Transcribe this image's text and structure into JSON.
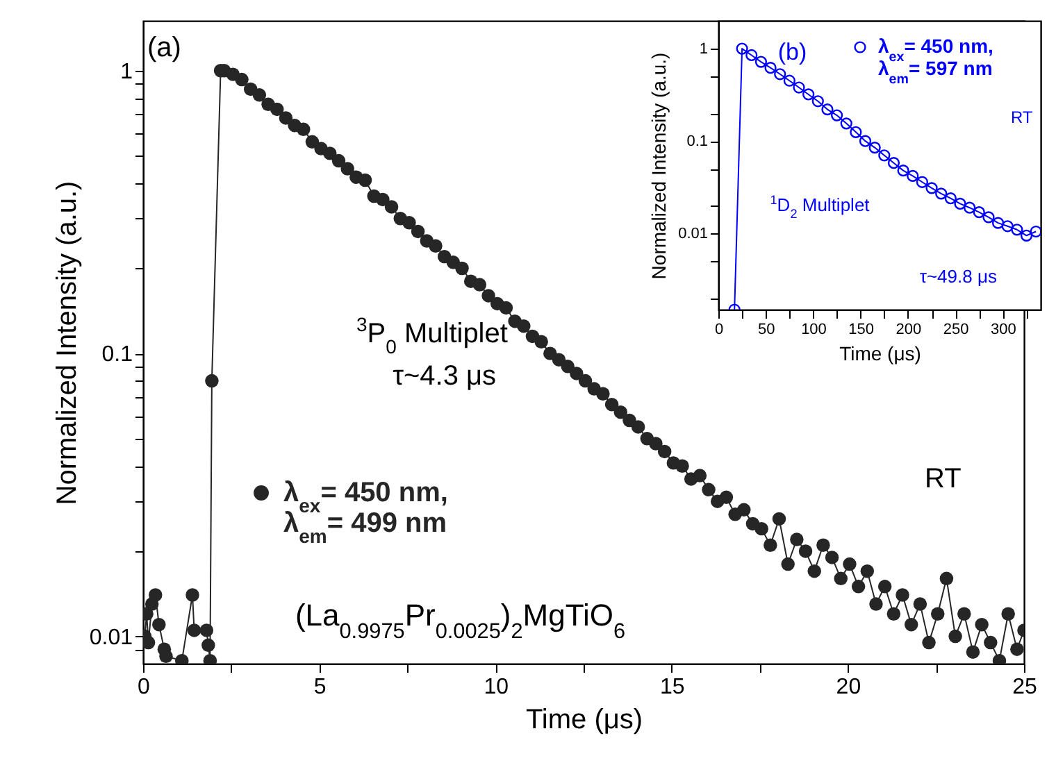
{
  "chart_data": [
    {
      "type": "line",
      "xlabel": "Time (μs)",
      "ylabel": "Normalized Intensity (a.u.)",
      "log": "y",
      "marker": "circle",
      "legend": "bottom left",
      "grid": false,
      "xlim": [
        0,
        25
      ],
      "xticks": [
        0,
        {
          "value": 2.5,
          "label": null
        },
        5,
        {
          "value": 7.5,
          "label": null
        },
        10,
        {
          "value": 12.5,
          "label": null
        },
        15,
        {
          "value": 17.5,
          "label": null
        },
        20,
        {
          "value": 22.5,
          "label": null
        },
        25
      ],
      "ylim": [
        0.008,
        1.5
      ],
      "yticks": [
        {
          "value": 0.009,
          "label": null
        },
        0.01,
        {
          "value": 0.02,
          "label": null
        },
        {
          "value": 0.03,
          "label": null
        },
        {
          "value": 0.04,
          "label": null
        },
        {
          "value": 0.05,
          "label": null
        },
        {
          "value": 0.06,
          "label": null
        },
        {
          "value": 0.07,
          "label": null
        },
        {
          "value": 0.08,
          "label": null
        },
        {
          "value": 0.09,
          "label": null
        },
        0.1,
        {
          "value": 0.2,
          "label": null
        },
        {
          "value": 0.3,
          "label": null
        },
        {
          "value": 0.4,
          "label": null
        },
        {
          "value": 0.5,
          "label": null
        },
        {
          "value": 0.6,
          "label": null
        },
        {
          "value": 0.7,
          "label": null
        },
        {
          "value": 0.8,
          "label": null
        },
        {
          "value": 0.9,
          "label": null
        },
        1
      ],
      "annotations": [
        "(a)",
        "$^{3}$P$_{0}$ Multiplet",
        "τ~4.3 μs",
        "RT",
        "(La$_{0.9975}$Pr$_{0.0025}$)$_{2}$MgTiO$_{6}$"
      ],
      "x": [
        0.05,
        0.1,
        0.15,
        0.25,
        0.35,
        0.45,
        0.6,
        0.65,
        1.1,
        1.4,
        1.45,
        1.8,
        1.85,
        1.9,
        1.95,
        2.2,
        2.3,
        2.55,
        2.8,
        3.05,
        3.3,
        3.55,
        3.8,
        4.05,
        4.3,
        4.55,
        4.8,
        5.05,
        5.3,
        5.55,
        5.8,
        6.05,
        6.3,
        6.55,
        6.8,
        7.05,
        7.3,
        7.55,
        7.8,
        8.05,
        8.3,
        8.55,
        8.8,
        9.05,
        9.3,
        9.55,
        9.8,
        10.05,
        10.3,
        10.55,
        10.8,
        11.05,
        11.3,
        11.55,
        11.8,
        12.05,
        12.3,
        12.55,
        12.8,
        13.05,
        13.3,
        13.55,
        13.8,
        14.05,
        14.3,
        14.55,
        14.8,
        15.05,
        15.3,
        15.55,
        15.8,
        16.05,
        16.3,
        16.55,
        16.8,
        17.05,
        17.3,
        17.55,
        17.8,
        18.05,
        18.3,
        18.55,
        18.8,
        19.05,
        19.3,
        19.55,
        19.8,
        20.05,
        20.3,
        20.55,
        20.8,
        21.05,
        21.3,
        21.55,
        21.8,
        22.05,
        22.3,
        22.55,
        22.8,
        23.05,
        23.3,
        23.55,
        23.8,
        24.05,
        24.3,
        24.55,
        24.8,
        25
      ],
      "series": [
        {
          "name": "λ$_{ex}$= 450 nm, λ$_{em}$= 499 nm",
          "color": "#262626",
          "values": [
            0.01,
            0.012,
            0.0095,
            0.013,
            0.014,
            0.011,
            0.009,
            0.0085,
            0.0082,
            0.014,
            0.0105,
            0.0105,
            0.0093,
            0.0082,
            0.08,
            1.0,
            1.0,
            0.97,
            0.93,
            0.86,
            0.82,
            0.76,
            0.73,
            0.68,
            0.64,
            0.62,
            0.56,
            0.53,
            0.51,
            0.48,
            0.45,
            0.42,
            0.41,
            0.36,
            0.35,
            0.33,
            0.3,
            0.29,
            0.27,
            0.25,
            0.24,
            0.22,
            0.21,
            0.2,
            0.18,
            0.175,
            0.16,
            0.15,
            0.145,
            0.13,
            0.125,
            0.115,
            0.11,
            0.1,
            0.095,
            0.09,
            0.085,
            0.08,
            0.075,
            0.072,
            0.066,
            0.062,
            0.058,
            0.055,
            0.05,
            0.048,
            0.045,
            0.041,
            0.04,
            0.036,
            0.037,
            0.033,
            0.03,
            0.031,
            0.027,
            0.028,
            0.025,
            0.024,
            0.021,
            0.026,
            0.018,
            0.022,
            0.02,
            0.017,
            0.021,
            0.019,
            0.016,
            0.018,
            0.015,
            0.017,
            0.013,
            0.015,
            0.012,
            0.014,
            0.011,
            0.013,
            0.0095,
            0.012,
            0.016,
            0.01,
            0.012,
            0.0088,
            0.011,
            0.0095,
            0.0082,
            0.012,
            0.009,
            0.0105
          ]
        }
      ]
    },
    {
      "type": "line",
      "xlabel": "Time (μs)",
      "ylabel": "Normalized Intensity (a.u.)",
      "log": "y",
      "marker": "circle",
      "legend": "top right",
      "grid": false,
      "xlim": [
        0,
        340
      ],
      "xticks": [
        0,
        {
          "value": 25,
          "label": null
        },
        50,
        {
          "value": 75,
          "label": null
        },
        100,
        {
          "value": 125,
          "label": null
        },
        150,
        {
          "value": 175,
          "label": null
        },
        200,
        {
          "value": 225,
          "label": null
        },
        250,
        {
          "value": 275,
          "label": null
        },
        300,
        {
          "value": 325,
          "label": null
        }
      ],
      "ylim": [
        0.0015,
        2
      ],
      "yticks": [
        {
          "value": 0.002,
          "label": null
        },
        {
          "value": 0.005,
          "label": null
        },
        0.01,
        {
          "value": 0.02,
          "label": null
        },
        {
          "value": 0.05,
          "label": null
        },
        0.1,
        {
          "value": 0.2,
          "label": null
        },
        {
          "value": 0.5,
          "label": null
        },
        1
      ],
      "annotations": [
        "(b)",
        "RT",
        "$^{1}$D$_{2}$ Multiplet",
        "τ~49.8 μs"
      ],
      "x": [
        17,
        25,
        35,
        45,
        55,
        65,
        75,
        85,
        95,
        105,
        115,
        125,
        135,
        145,
        155,
        165,
        175,
        185,
        195,
        205,
        215,
        225,
        235,
        245,
        255,
        265,
        275,
        285,
        295,
        305,
        315,
        325,
        335
      ],
      "series": [
        {
          "name": "λ$_{ex}$= 450 nm, λ$_{em}$= 597 nm",
          "color": "#0000ff",
          "values": [
            0.0015,
            1.0,
            0.85,
            0.72,
            0.62,
            0.53,
            0.45,
            0.38,
            0.32,
            0.27,
            0.22,
            0.19,
            0.155,
            0.125,
            0.1,
            0.085,
            0.07,
            0.058,
            0.048,
            0.042,
            0.036,
            0.031,
            0.027,
            0.024,
            0.021,
            0.019,
            0.017,
            0.015,
            0.013,
            0.012,
            0.011,
            0.0095,
            0.0105
          ]
        }
      ]
    }
  ]
}
